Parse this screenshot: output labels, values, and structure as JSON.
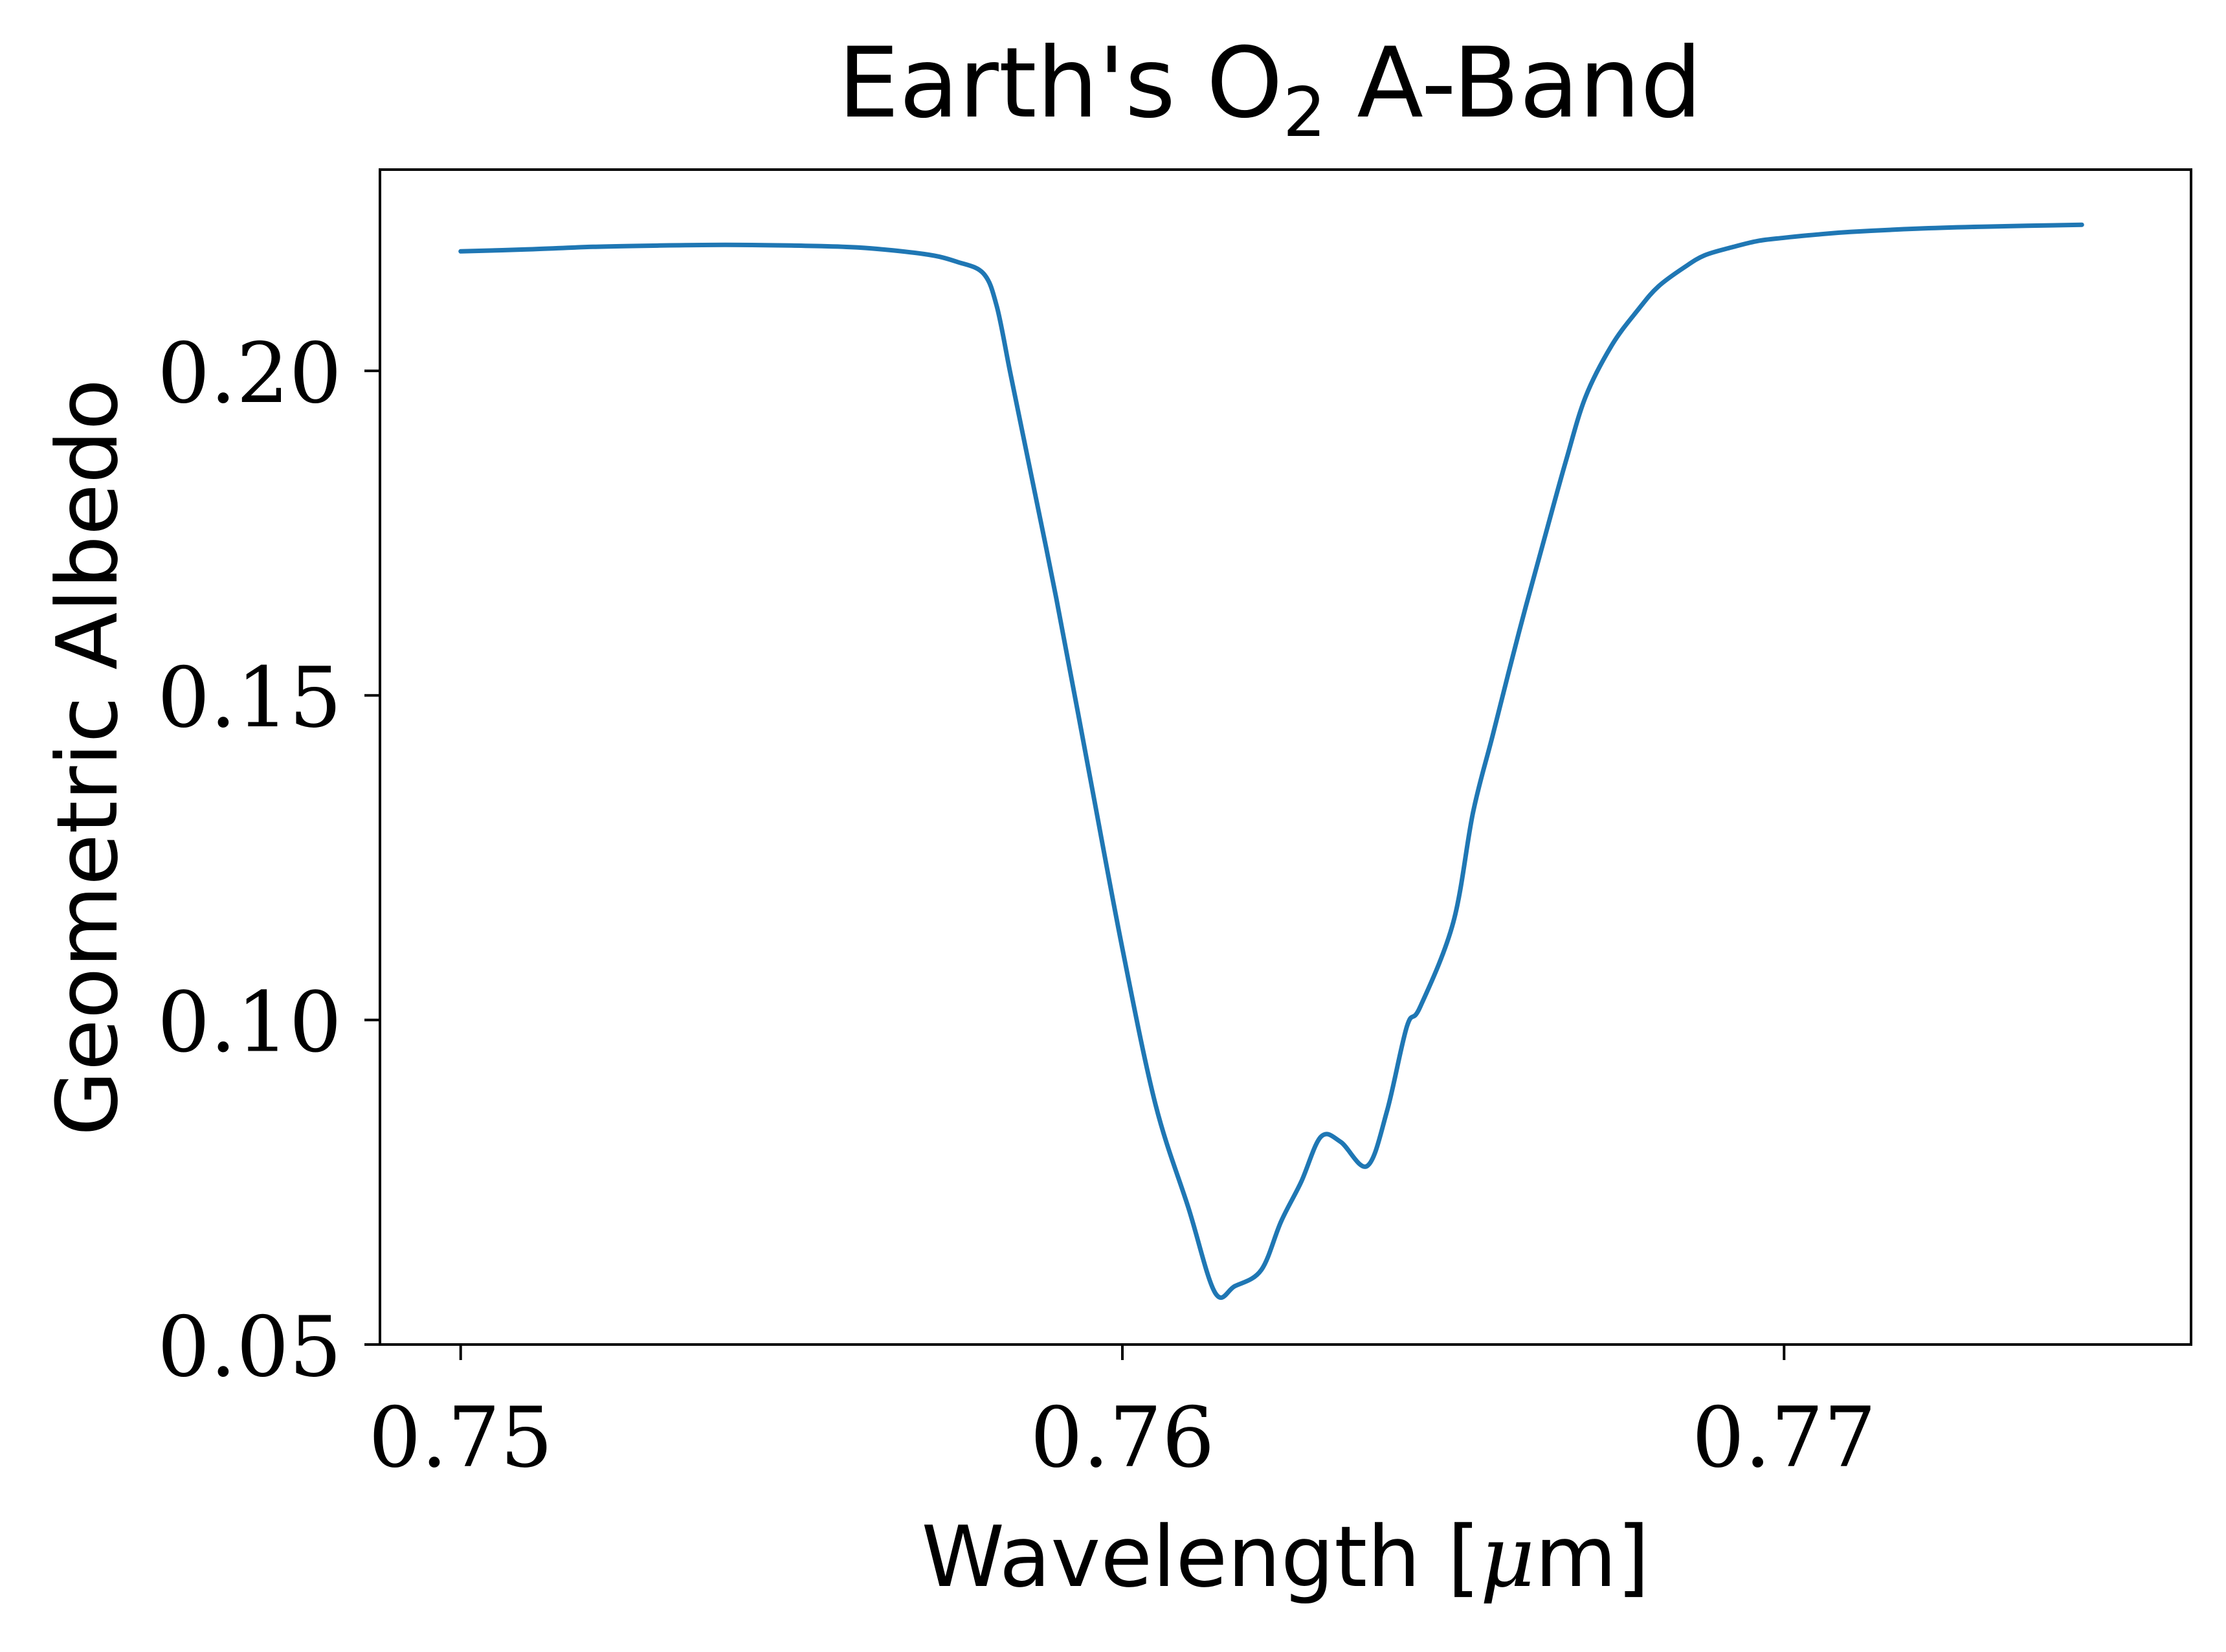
{
  "chart_data": {
    "type": "line",
    "title": "Earth's O",
    "title_subscript": "2",
    "title_suffix": " A-Band",
    "xlabel": "Wavelength [",
    "xlabel_symbol": "μ",
    "xlabel_suffix": "m]",
    "ylabel": "Geometric Albedo",
    "xlim": [
      0.74878,
      0.77615
    ],
    "ylim": [
      0.05,
      0.231
    ],
    "xticks": [
      0.75,
      0.76,
      0.77
    ],
    "xtick_labels": [
      "0.75",
      "0.76",
      "0.77"
    ],
    "yticks": [
      0.05,
      0.1,
      0.15,
      0.2
    ],
    "ytick_labels": [
      "0.05",
      "0.10",
      "0.15",
      "0.20"
    ],
    "grid": false,
    "legend": "none",
    "series": [
      {
        "color": "#1f77b4",
        "x": [
          0.75,
          0.751,
          0.752,
          0.753,
          0.754,
          0.755,
          0.756,
          0.757,
          0.7575,
          0.7579,
          0.7581,
          0.7583,
          0.7585,
          0.759,
          0.7595,
          0.76,
          0.7605,
          0.761,
          0.7614,
          0.7617,
          0.7621,
          0.7624,
          0.7627,
          0.763,
          0.7633,
          0.7637,
          0.764,
          0.7643,
          0.7645,
          0.765,
          0.7653,
          0.7656,
          0.766,
          0.7664,
          0.7667,
          0.767,
          0.7674,
          0.7678,
          0.7681,
          0.7685,
          0.7688,
          0.7692,
          0.7696,
          0.77,
          0.7705,
          0.771,
          0.772,
          0.773,
          0.7745
        ],
        "y": [
          0.2184,
          0.2187,
          0.2191,
          0.2193,
          0.2194,
          0.2193,
          0.219,
          0.218,
          0.2168,
          0.215,
          0.21,
          0.2,
          0.19,
          0.165,
          0.138,
          0.111,
          0.087,
          0.071,
          0.058,
          0.059,
          0.0615,
          0.069,
          0.075,
          0.082,
          0.0812,
          0.0775,
          0.086,
          0.099,
          0.102,
          0.115,
          0.132,
          0.144,
          0.16,
          0.175,
          0.186,
          0.196,
          0.204,
          0.2095,
          0.213,
          0.216,
          0.2178,
          0.219,
          0.22,
          0.2205,
          0.221,
          0.2214,
          0.2219,
          0.2222,
          0.2225
        ]
      }
    ]
  }
}
